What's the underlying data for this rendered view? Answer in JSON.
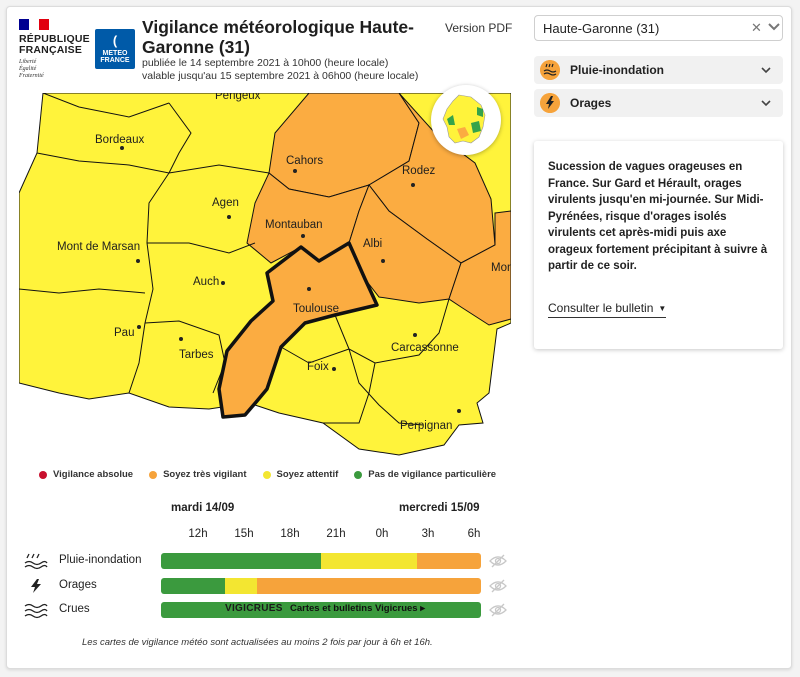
{
  "header": {
    "republic_name": "RÉPUBLIQUE\nFRANÇAISE",
    "republic_motto": "Liberté\nÉgalité\nFraternité",
    "meteo_logo_text": "METEO\nFRANCE",
    "title": "Vigilance météorologique Haute-Garonne (31)",
    "published": "publiée le 14 septembre 2021 à 10h00 (heure locale)",
    "valid_until": "valable jusqu'au 15 septembre 2021 à 06h00 (heure locale)",
    "pdf_link": "Version PDF"
  },
  "map": {
    "cities": [
      "Pengeux",
      "Bordeaux",
      "Cahors",
      "Rodez",
      "Agen",
      "Montauban",
      "Albi",
      "Mont de Marsan",
      "Auch",
      "Mont",
      "Toulouse",
      "Pau",
      "Tarbes",
      "Foix",
      "Carcassonne",
      "Perpignan"
    ],
    "colors": {
      "yellow": "#fff33b",
      "orange": "#fbac41",
      "green": "#35a34a",
      "red": "#d0161e"
    }
  },
  "legend": [
    {
      "label": "Vigilance absolue",
      "color": "#c8102e"
    },
    {
      "label": "Soyez très vigilant",
      "color": "#f6a33b"
    },
    {
      "label": "Soyez attentif",
      "color": "#f3e631"
    },
    {
      "label": "Pas de vigilance particulière",
      "color": "#3b9a3e"
    }
  ],
  "timeline": {
    "day1": "mardi 14/09",
    "day2": "mercredi 15/09",
    "hours": [
      "12h",
      "15h",
      "18h",
      "21h",
      "0h",
      "3h",
      "6h"
    ],
    "rows": [
      {
        "label": "Pluie-inondation",
        "icon": "rain-flood-icon",
        "segments": [
          {
            "from": 0,
            "to": 0.5,
            "level": "green"
          },
          {
            "from": 0.5,
            "to": 0.8,
            "level": "yellow"
          },
          {
            "from": 0.8,
            "to": 1,
            "level": "orange"
          }
        ]
      },
      {
        "label": "Orages",
        "icon": "lightning-icon",
        "segments": [
          {
            "from": 0,
            "to": 0.2,
            "level": "green"
          },
          {
            "from": 0.2,
            "to": 0.3,
            "level": "yellow"
          },
          {
            "from": 0.3,
            "to": 1,
            "level": "orange"
          }
        ]
      },
      {
        "label": "Crues",
        "icon": "waves-icon",
        "level": "green",
        "logo": "VIGICRUES",
        "link": "Cartes et bulletins Vigicrues ▸"
      }
    ],
    "level_colors": {
      "green": "#3b9a3e",
      "yellow": "#f3e631",
      "orange": "#f6a33b"
    }
  },
  "footer_note": "Les cartes de vigilance météo sont actualisées au moins 2 fois par jour à 6h et 16h.",
  "sidebar": {
    "department": "Haute-Garonne (31)",
    "phenomena": [
      {
        "label": "Pluie-inondation",
        "icon": "rain-flood-icon"
      },
      {
        "label": "Orages",
        "icon": "lightning-icon"
      }
    ],
    "description": "Sucession de vagues orageuses en France. Sur Gard et Hérault, orages virulents jusqu'en mi-journée. Sur Midi-Pyrénées, risque d'orages isolés virulents cet après-midi puis axe orageux fortement précipitant à suivre à partir de ce soir.",
    "bulletin_link": "Consulter le bulletin"
  }
}
